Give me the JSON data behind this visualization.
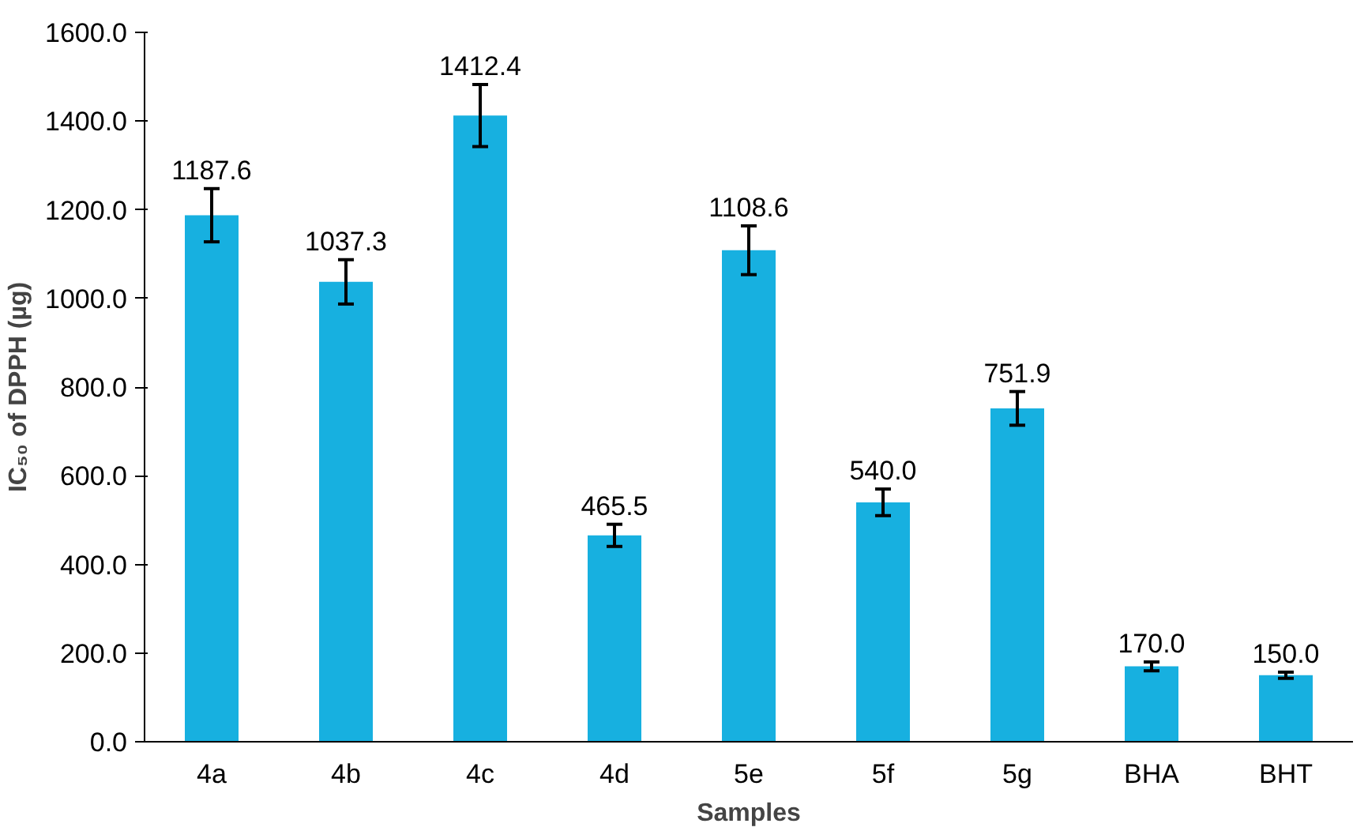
{
  "chart_data": {
    "type": "bar",
    "xlabel": "Samples",
    "ylabel": "IC₅₀ of DPPH (µg)",
    "categories": [
      "4a",
      "4b",
      "4c",
      "4d",
      "5e",
      "5f",
      "5g",
      "BHA",
      "BHT"
    ],
    "values": [
      1187.6,
      1037.3,
      1412.4,
      465.5,
      1108.6,
      540.0,
      751.9,
      170.0,
      150.0
    ],
    "errors": [
      60,
      50,
      70,
      25,
      55,
      30,
      38,
      10,
      7
    ],
    "color": "#17b0e0",
    "value_labels": [
      "1187.6",
      "1037.3",
      "1412.4",
      "465.5",
      "1108.6",
      "540.0",
      "751.9",
      "170.0",
      "150.0"
    ],
    "ylim": [
      0,
      1600
    ],
    "yticks": [
      {
        "value": 0,
        "label": "0.0"
      },
      {
        "value": 200,
        "label": "200.0"
      },
      {
        "value": 400,
        "label": "400.0"
      },
      {
        "value": 600,
        "label": "600.0"
      },
      {
        "value": 800,
        "label": "800.0"
      },
      {
        "value": 1000,
        "label": "1000.0"
      },
      {
        "value": 1200,
        "label": "1200.0"
      },
      {
        "value": 1400,
        "label": "1400.0"
      },
      {
        "value": 1600,
        "label": "1600.0"
      }
    ],
    "grid": false
  }
}
